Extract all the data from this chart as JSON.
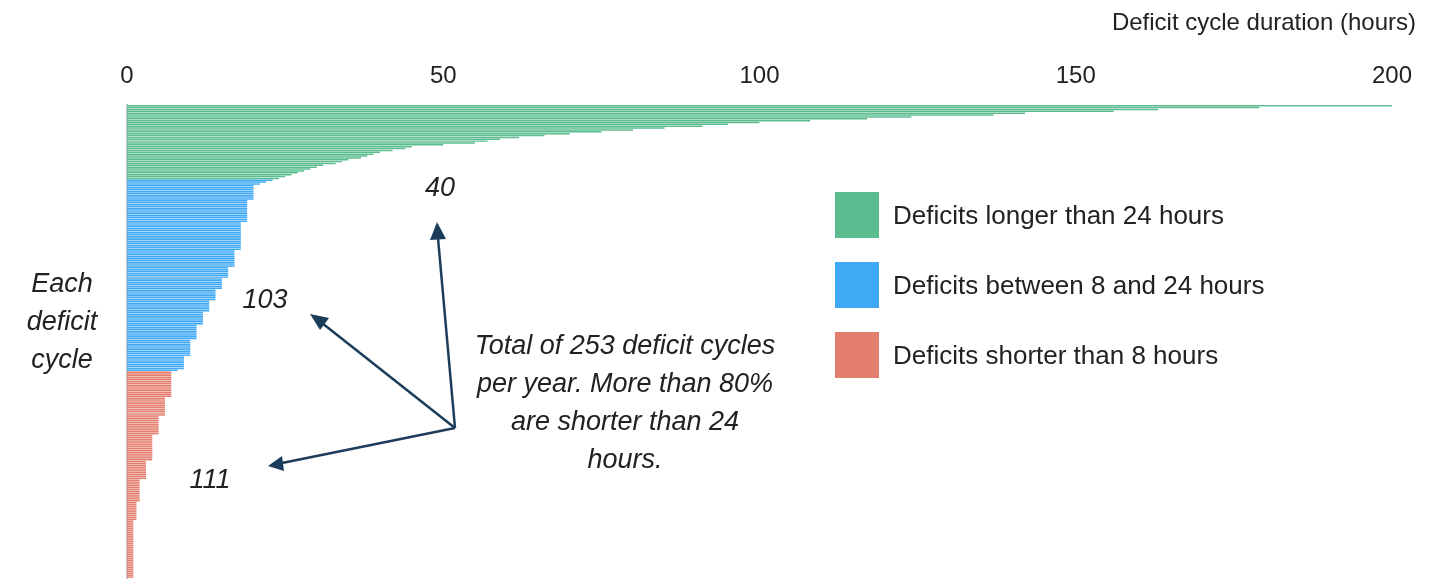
{
  "chart_data": {
    "type": "bar",
    "orientation": "horizontal",
    "xlabel": "Deficit cycle duration (hours)",
    "ylabel": "Each deficit cycle",
    "xlim": [
      0,
      200
    ],
    "xticks": [
      0,
      50,
      100,
      150,
      200
    ],
    "tick_labels": "x",
    "legend": "right",
    "categories": [
      null,
      null,
      null,
      null,
      null,
      null,
      null,
      null,
      null,
      null,
      null,
      null,
      null,
      null,
      null,
      null,
      null,
      null,
      null,
      null,
      null,
      null,
      null,
      null,
      null,
      null,
      null,
      null,
      null,
      null,
      null,
      null,
      null,
      null,
      null,
      null,
      null,
      null,
      null,
      null,
      null,
      null,
      null,
      null,
      null,
      null,
      null,
      null,
      null,
      null,
      null,
      null,
      null,
      null,
      null,
      null,
      null,
      null,
      null,
      null,
      null,
      null,
      null,
      null,
      null,
      null,
      null,
      null,
      null,
      null,
      null,
      null,
      null,
      null,
      null,
      null,
      null,
      null,
      null,
      null,
      null,
      null,
      null,
      null,
      null,
      null,
      null,
      null,
      null,
      null,
      null,
      null,
      null,
      null,
      null,
      null,
      null,
      null,
      null,
      null,
      null,
      null,
      null,
      null,
      null,
      null,
      null,
      null,
      null,
      null,
      null,
      null,
      null,
      null,
      null,
      null,
      null,
      null,
      null,
      null,
      null,
      null,
      null,
      null,
      null,
      null,
      null,
      null,
      null,
      null,
      null,
      null,
      null,
      null,
      null,
      null,
      null,
      null,
      null,
      null,
      null,
      null,
      null,
      null,
      null,
      null,
      null,
      null,
      null,
      null,
      null,
      null,
      null,
      null,
      null,
      null,
      null,
      null,
      null,
      null,
      null,
      null,
      null,
      null,
      null,
      null,
      null,
      null,
      null,
      null,
      null,
      null,
      null,
      null,
      null,
      null,
      null,
      null,
      null,
      null,
      null,
      null,
      null,
      null,
      null,
      null,
      null,
      null,
      null,
      null,
      null,
      null,
      null,
      null,
      null,
      null,
      null,
      null,
      null,
      null,
      null,
      null,
      null,
      null,
      null,
      null,
      null,
      null,
      null,
      null,
      null,
      null,
      null,
      null,
      null,
      null,
      null,
      null,
      null,
      null,
      null,
      null,
      null,
      null,
      null,
      null,
      null,
      null,
      null,
      null,
      null,
      null,
      null,
      null,
      null,
      null,
      null,
      null,
      null,
      null,
      null,
      null,
      null,
      null,
      null,
      null,
      null,
      null,
      null,
      null,
      null,
      null,
      null,
      null
    ],
    "series": [
      {
        "name": "Deficits longer than 24 hours",
        "color": "#5bbd8f",
        "values": [
          200,
          179,
          163,
          156,
          142,
          137,
          124,
          117,
          108,
          100,
          95,
          91,
          85,
          80,
          75,
          70,
          66,
          62,
          59,
          57,
          55,
          50,
          45,
          44,
          42,
          40,
          39,
          38,
          37,
          35,
          34,
          33,
          31,
          30,
          29,
          28,
          27,
          26,
          25,
          24,
          null,
          null,
          null,
          null,
          null,
          null,
          null,
          null,
          null,
          null,
          null,
          null,
          null,
          null,
          null,
          null,
          null,
          null,
          null,
          null,
          null,
          null,
          null,
          null,
          null,
          null,
          null,
          null,
          null,
          null,
          null,
          null,
          null,
          null,
          null,
          null,
          null,
          null,
          null,
          null,
          null,
          null,
          null,
          null,
          null,
          null,
          null,
          null,
          null,
          null,
          null,
          null,
          null,
          null,
          null,
          null,
          null,
          null,
          null,
          null,
          null,
          null,
          null,
          null,
          null,
          null,
          null,
          null,
          null,
          null,
          null,
          null,
          null,
          null,
          null,
          null,
          null,
          null,
          null,
          null,
          null,
          null,
          null,
          null,
          null,
          null,
          null,
          null,
          null,
          null,
          null,
          null,
          null,
          null,
          null,
          null,
          null,
          null,
          null,
          null,
          null,
          null,
          null,
          null,
          null,
          null,
          null,
          null,
          null,
          null,
          null,
          null,
          null,
          null,
          null,
          null,
          null,
          null,
          null,
          null,
          null,
          null,
          null,
          null,
          null,
          null,
          null,
          null,
          null,
          null,
          null,
          null,
          null,
          null,
          null,
          null,
          null,
          null,
          null,
          null,
          null,
          null,
          null,
          null,
          null,
          null,
          null,
          null,
          null,
          null,
          null,
          null,
          null,
          null,
          null,
          null,
          null,
          null,
          null,
          null,
          null,
          null,
          null,
          null,
          null,
          null,
          null,
          null,
          null,
          null,
          null,
          null,
          null,
          null,
          null,
          null,
          null,
          null,
          null,
          null,
          null,
          null,
          null,
          null,
          null,
          null,
          null,
          null,
          null,
          null,
          null,
          null,
          null,
          null,
          null,
          null,
          null,
          null,
          null,
          null,
          null,
          null,
          null,
          null,
          null,
          null,
          null,
          null,
          null,
          null,
          null,
          null,
          null,
          null
        ]
      },
      {
        "name": "Deficits between 8 and 24 hours",
        "color": "#3fa9f5",
        "values": [
          null,
          null,
          null,
          null,
          null,
          null,
          null,
          null,
          null,
          null,
          null,
          null,
          null,
          null,
          null,
          null,
          null,
          null,
          null,
          null,
          null,
          null,
          null,
          null,
          null,
          null,
          null,
          null,
          null,
          null,
          null,
          null,
          null,
          null,
          null,
          null,
          null,
          null,
          null,
          null,
          23,
          22,
          21,
          20,
          20,
          20,
          20,
          20,
          20,
          20,
          20,
          19,
          19,
          19,
          19,
          19,
          19,
          19,
          19,
          19,
          19,
          19,
          19,
          18,
          18,
          18,
          18,
          18,
          18,
          18,
          18,
          18,
          18,
          18,
          18,
          18,
          18,
          18,
          17,
          17,
          17,
          17,
          17,
          17,
          17,
          17,
          17,
          16,
          16,
          16,
          16,
          16,
          16,
          15,
          15,
          15,
          15,
          15,
          15,
          14,
          14,
          14,
          14,
          14,
          14,
          13,
          13,
          13,
          13,
          13,
          13,
          12,
          12,
          12,
          12,
          12,
          12,
          12,
          11,
          11,
          11,
          11,
          11,
          11,
          11,
          11,
          10,
          10,
          10,
          10,
          10,
          10,
          10,
          10,
          10,
          9,
          9,
          9,
          9,
          9,
          9,
          9,
          8,
          null,
          null,
          null,
          null,
          null,
          null,
          null,
          null,
          null,
          null,
          null,
          null,
          null,
          null,
          null,
          null,
          null,
          null,
          null,
          null,
          null,
          null,
          null,
          null,
          null,
          null,
          null,
          null,
          null,
          null,
          null,
          null,
          null,
          null,
          null,
          null,
          null,
          null,
          null,
          null,
          null,
          null,
          null,
          null,
          null,
          null,
          null,
          null,
          null,
          null,
          null,
          null,
          null,
          null,
          null,
          null,
          null,
          null,
          null,
          null,
          null,
          null,
          null,
          null,
          null,
          null,
          null,
          null,
          null,
          null,
          null,
          null,
          null,
          null,
          null,
          null,
          null,
          null,
          null,
          null,
          null,
          null,
          null,
          null,
          null,
          null,
          null,
          null,
          null,
          null,
          null,
          null,
          null,
          null,
          null,
          null,
          null,
          null,
          null,
          null,
          null,
          null,
          null,
          null,
          null,
          null,
          null,
          null,
          null,
          null,
          null
        ]
      },
      {
        "name": "Deficits shorter than 8 hours",
        "color": "#e47e6e",
        "values": [
          null,
          null,
          null,
          null,
          null,
          null,
          null,
          null,
          null,
          null,
          null,
          null,
          null,
          null,
          null,
          null,
          null,
          null,
          null,
          null,
          null,
          null,
          null,
          null,
          null,
          null,
          null,
          null,
          null,
          null,
          null,
          null,
          null,
          null,
          null,
          null,
          null,
          null,
          null,
          null,
          null,
          null,
          null,
          null,
          null,
          null,
          null,
          null,
          null,
          null,
          null,
          null,
          null,
          null,
          null,
          null,
          null,
          null,
          null,
          null,
          null,
          null,
          null,
          null,
          null,
          null,
          null,
          null,
          null,
          null,
          null,
          null,
          null,
          null,
          null,
          null,
          null,
          null,
          null,
          null,
          null,
          null,
          null,
          null,
          null,
          null,
          null,
          null,
          null,
          null,
          null,
          null,
          null,
          null,
          null,
          null,
          null,
          null,
          null,
          null,
          null,
          null,
          null,
          null,
          null,
          null,
          null,
          null,
          null,
          null,
          null,
          null,
          null,
          null,
          null,
          null,
          null,
          null,
          null,
          null,
          null,
          null,
          null,
          null,
          null,
          null,
          null,
          null,
          null,
          null,
          null,
          null,
          null,
          null,
          null,
          null,
          null,
          null,
          null,
          null,
          null,
          null,
          null,
          7,
          7,
          7,
          7,
          7,
          7,
          7,
          7,
          7,
          7,
          7,
          7,
          7,
          7,
          6,
          6,
          6,
          6,
          6,
          6,
          6,
          6,
          6,
          6,
          5,
          5,
          5,
          5,
          5,
          5,
          5,
          5,
          5,
          5,
          4,
          4,
          4,
          4,
          4,
          4,
          4,
          4,
          4,
          4,
          4,
          4,
          4,
          4,
          3,
          3,
          3,
          3,
          3,
          3,
          3,
          3,
          3,
          3,
          2,
          2,
          2,
          2,
          2,
          2,
          2,
          2,
          2,
          2,
          2,
          2,
          1.5,
          1.5,
          1.5,
          1.5,
          1.5,
          1.5,
          1.5,
          1.5,
          1.5,
          1.5,
          1,
          1,
          1,
          1,
          1,
          1,
          1,
          1,
          1,
          1,
          1,
          1,
          1,
          1,
          1,
          1,
          1,
          1,
          1,
          1,
          1,
          1,
          1,
          1,
          1,
          1,
          1,
          1,
          1,
          1,
          1
        ]
      }
    ],
    "annotations": [
      "40",
      "103",
      "111",
      "Total of 253 deficit cycles per year. More than 80% are shorter than 24 hours."
    ]
  }
}
